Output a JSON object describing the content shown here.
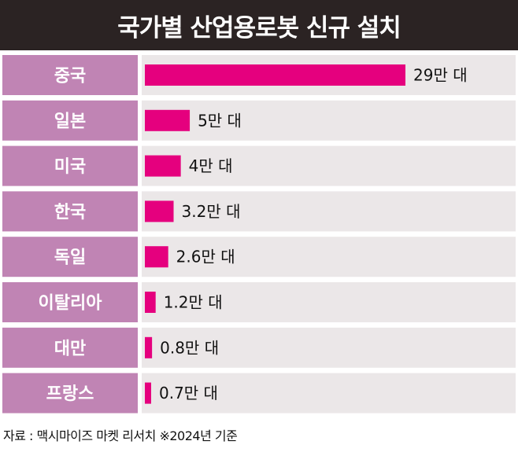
{
  "chart_data": {
    "type": "bar",
    "orientation": "horizontal",
    "title": "국가별 산업용로봇 신규 설치",
    "categories": [
      "중국",
      "일본",
      "미국",
      "한국",
      "독일",
      "이탈리아",
      "대만",
      "프랑스"
    ],
    "values": [
      29,
      5,
      4,
      3.2,
      2.6,
      1.2,
      0.8,
      0.7
    ],
    "value_labels": [
      "29만 대",
      "5만 대",
      "4만 대",
      "3.2만 대",
      "2.6만 대",
      "1.2만 대",
      "0.8만 대",
      "0.7만 대"
    ],
    "unit": "만 대",
    "grid": false,
    "legend": "none"
  },
  "source_note": "자료 : 맥시마이즈 마켓 리서치  ※2024년 기준",
  "colors": {
    "title_bg": "#2b2323",
    "label_bg": "#c084b4",
    "track_bg": "#ebe7e8",
    "bar": "#e5007e"
  }
}
